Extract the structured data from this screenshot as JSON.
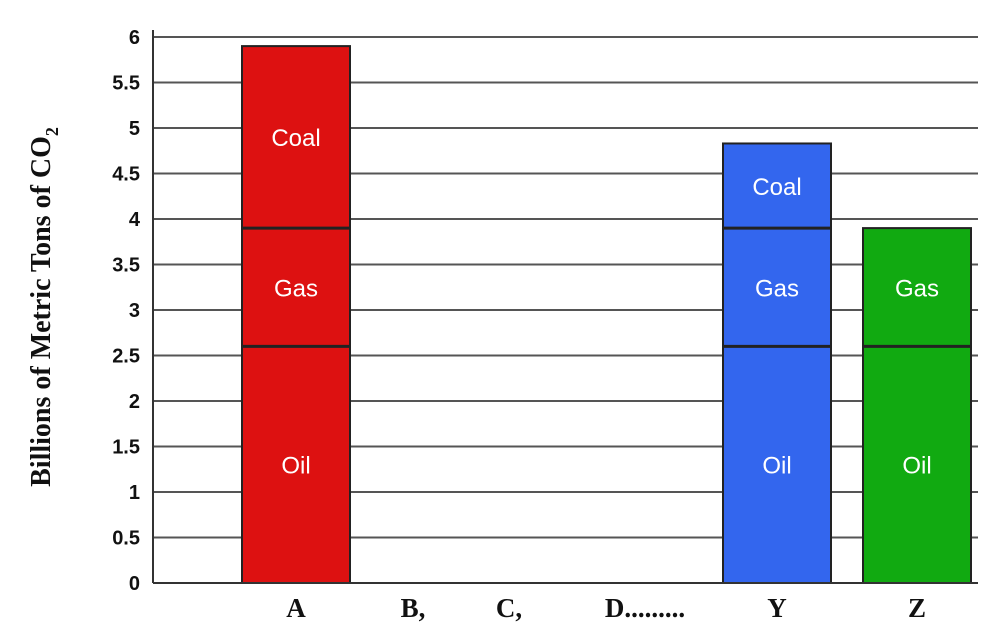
{
  "chart_data": {
    "type": "bar",
    "stacked": true,
    "categories": [
      "A",
      "B,",
      "C,",
      "D.........",
      "Y",
      "Z"
    ],
    "series": [
      {
        "name": "Oil",
        "values": [
          2.6,
          null,
          null,
          null,
          2.6,
          2.6
        ]
      },
      {
        "name": "Gas",
        "values": [
          1.3,
          null,
          null,
          null,
          1.3,
          1.3
        ]
      },
      {
        "name": "Coal",
        "values": [
          2.0,
          null,
          null,
          null,
          0.93,
          null
        ]
      }
    ],
    "totals": [
      5.9,
      null,
      null,
      null,
      4.83,
      3.9
    ],
    "ylabel_main": "Billions of Metric Tons of CO",
    "ylabel_sub": "2",
    "ylim": [
      0,
      6
    ],
    "yticks": [
      "0",
      "0.5",
      "1",
      "1.5",
      "2",
      "2.5",
      "3",
      "3.5",
      "4",
      "4.5",
      "5",
      "5.5",
      "6"
    ],
    "grid": true,
    "bar_colors": [
      "#dd1111",
      null,
      null,
      null,
      "#3366ee",
      "#11aa11"
    ]
  }
}
